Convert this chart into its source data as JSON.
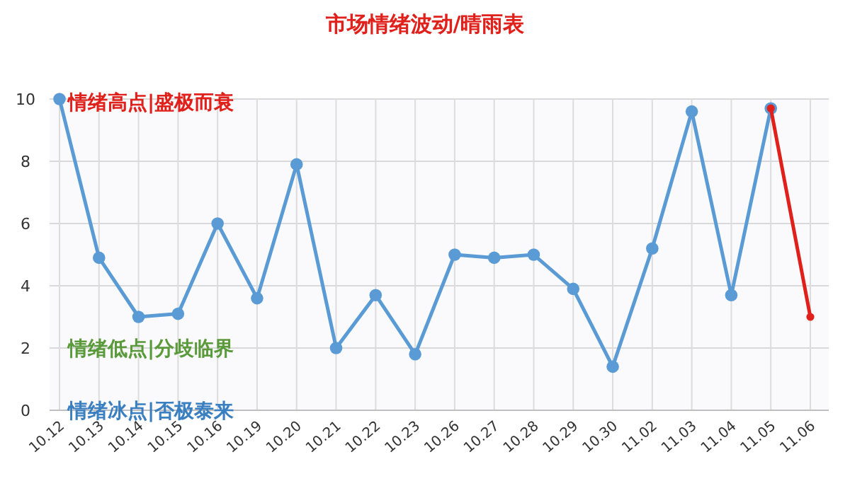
{
  "chart_data": {
    "type": "line",
    "title": "市场情绪波动/晴雨表",
    "categories": [
      "10.12",
      "10.13",
      "10.14",
      "10.15",
      "10.16",
      "10.19",
      "10.20",
      "10.21",
      "10.22",
      "10.23",
      "10.26",
      "10.27",
      "10.28",
      "10.29",
      "10.30",
      "11.02",
      "11.03",
      "11.04",
      "11.05",
      "11.06"
    ],
    "series": [
      {
        "color": "#5b9bd5",
        "values": [
          10,
          4.9,
          3.0,
          3.1,
          6.0,
          3.6,
          7.9,
          2.0,
          3.7,
          1.8,
          5.0,
          4.9,
          5.0,
          3.9,
          1.4,
          5.2,
          9.6,
          3.7,
          9.7,
          null
        ]
      },
      {
        "color": "#e0201b",
        "values": [
          null,
          null,
          null,
          null,
          null,
          null,
          null,
          null,
          null,
          null,
          null,
          null,
          null,
          null,
          null,
          null,
          null,
          null,
          9.7,
          3.0
        ]
      }
    ],
    "ylim": [
      0,
      10
    ],
    "yticks": [
      0,
      2,
      4,
      6,
      8,
      10
    ],
    "grid": true,
    "marker": "circle",
    "annotations": [
      "情绪高点|盛极而衰",
      "情绪低点|分歧临界",
      "情绪冰点|否极泰来"
    ]
  }
}
